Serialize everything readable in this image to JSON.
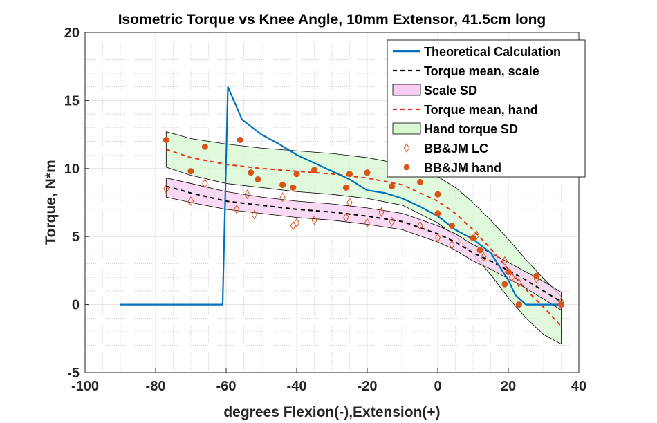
{
  "chart_data": {
    "type": "line",
    "title": "Isometric Torque vs Knee Angle, 10mm Extensor, 41.5cm long",
    "xlabel": "degrees Flexion(-),Extension(+)",
    "ylabel": "Torque, N*m",
    "xlim": [
      -100,
      40
    ],
    "ylim": [
      -5,
      20
    ],
    "xticks": [
      -100,
      -80,
      -60,
      -40,
      -20,
      0,
      20,
      40
    ],
    "yticks": [
      -5,
      0,
      5,
      10,
      15,
      20
    ],
    "grid": true,
    "minor_grid": true,
    "legend_position": "top-right",
    "colors": {
      "theoretical": "#0072BD",
      "scale_mean": "#000000",
      "scale_sd_fill": "#F7CCF0",
      "hand_mean": "#E8311A",
      "hand_sd_fill": "#D6F7D0",
      "marker": "#D95319"
    },
    "series": [
      {
        "name": "Theoretical Calculation",
        "style": "solid",
        "x": [
          -90,
          -61,
          -59.5,
          -55.5,
          -50,
          -45,
          -40,
          -35,
          -30,
          -25,
          -20,
          -15,
          -10,
          -5,
          0,
          5,
          10,
          15,
          20,
          22,
          25,
          30,
          35
        ],
        "y": [
          0,
          0,
          16.0,
          13.6,
          12.5,
          11.8,
          11.0,
          10.4,
          9.8,
          9.2,
          8.4,
          8.2,
          7.8,
          7.2,
          6.5,
          5.5,
          4.8,
          3.8,
          1.8,
          0.7,
          0,
          0,
          0
        ]
      },
      {
        "name": "Torque mean, scale",
        "style": "dashed",
        "x": [
          -77,
          -70,
          -60,
          -50,
          -40,
          -30,
          -20,
          -10,
          0,
          5,
          10,
          15,
          20,
          25,
          30,
          35
        ],
        "y": [
          8.7,
          8.2,
          7.6,
          7.3,
          7.0,
          6.8,
          6.5,
          6.1,
          5.2,
          4.6,
          3.8,
          3.2,
          2.5,
          1.8,
          1.0,
          0.2
        ]
      },
      {
        "name": "Scale SD",
        "style": "band",
        "x": [
          -77,
          -70,
          -60,
          -50,
          -40,
          -30,
          -20,
          -10,
          0,
          5,
          10,
          15,
          20,
          25,
          30,
          35
        ],
        "upper": [
          9.3,
          8.9,
          8.3,
          7.9,
          7.6,
          7.4,
          7.1,
          6.7,
          5.8,
          5.2,
          4.4,
          3.8,
          3.1,
          2.4,
          1.7,
          0.9
        ],
        "lower": [
          7.9,
          7.5,
          7.0,
          6.7,
          6.4,
          6.2,
          5.9,
          5.5,
          4.6,
          4.0,
          3.2,
          2.6,
          1.9,
          1.2,
          0.4,
          -0.4
        ]
      },
      {
        "name": "Torque mean, hand",
        "style": "dashed",
        "x": [
          -77,
          -70,
          -60,
          -50,
          -40,
          -30,
          -20,
          -10,
          0,
          5,
          10,
          15,
          20,
          25,
          30,
          35
        ],
        "y": [
          11.4,
          10.8,
          10.3,
          10.0,
          9.8,
          9.6,
          9.3,
          8.8,
          7.6,
          6.7,
          5.5,
          4.1,
          2.6,
          1.1,
          -0.2,
          -1.6
        ]
      },
      {
        "name": "Hand torque SD",
        "style": "band",
        "x": [
          -77,
          -70,
          -60,
          -50,
          -40,
          -30,
          -20,
          -10,
          0,
          5,
          10,
          15,
          20,
          25,
          30,
          35
        ],
        "upper": [
          12.7,
          12.2,
          11.8,
          11.5,
          11.3,
          11.1,
          10.8,
          10.3,
          9.4,
          8.6,
          7.5,
          6.2,
          4.8,
          3.3,
          1.9,
          0.6
        ],
        "lower": [
          10.1,
          9.5,
          8.9,
          8.6,
          8.3,
          8.1,
          7.8,
          7.3,
          6.0,
          5.0,
          3.7,
          2.2,
          0.5,
          -1.0,
          -2.2,
          -2.9
        ]
      },
      {
        "name": "BB&JM LC",
        "style": "markers-diamond",
        "x": [
          -77,
          -70,
          -66,
          -57,
          -54,
          -52,
          -44,
          -41,
          -40,
          -35,
          -26,
          -25,
          -20,
          -16,
          -13,
          -5,
          0,
          4,
          11,
          13,
          19,
          21,
          23,
          28,
          35
        ],
        "y": [
          8.5,
          7.6,
          8.9,
          7.0,
          8.1,
          6.6,
          7.9,
          5.8,
          6.0,
          6.2,
          6.4,
          7.5,
          6.0,
          6.8,
          6.1,
          5.8,
          4.9,
          4.4,
          5.1,
          3.5,
          3.2,
          2.0,
          1.6,
          1.9,
          0.2
        ]
      },
      {
        "name": "BB&JM hand",
        "style": "markers-dot",
        "x": [
          -77,
          -70,
          -66,
          -56,
          -53,
          -51,
          -44,
          -41,
          -40,
          -35,
          -26,
          -25,
          -20,
          -13,
          -5,
          0,
          0,
          4,
          10,
          12,
          19,
          20,
          23,
          28,
          35
        ],
        "y": [
          12.1,
          9.8,
          11.6,
          12.1,
          9.7,
          9.2,
          8.8,
          8.6,
          9.6,
          9.9,
          8.6,
          9.6,
          9.7,
          8.7,
          9.0,
          8.1,
          6.7,
          5.8,
          4.9,
          4.0,
          1.5,
          2.4,
          0.0,
          2.1,
          0.0
        ]
      }
    ]
  }
}
